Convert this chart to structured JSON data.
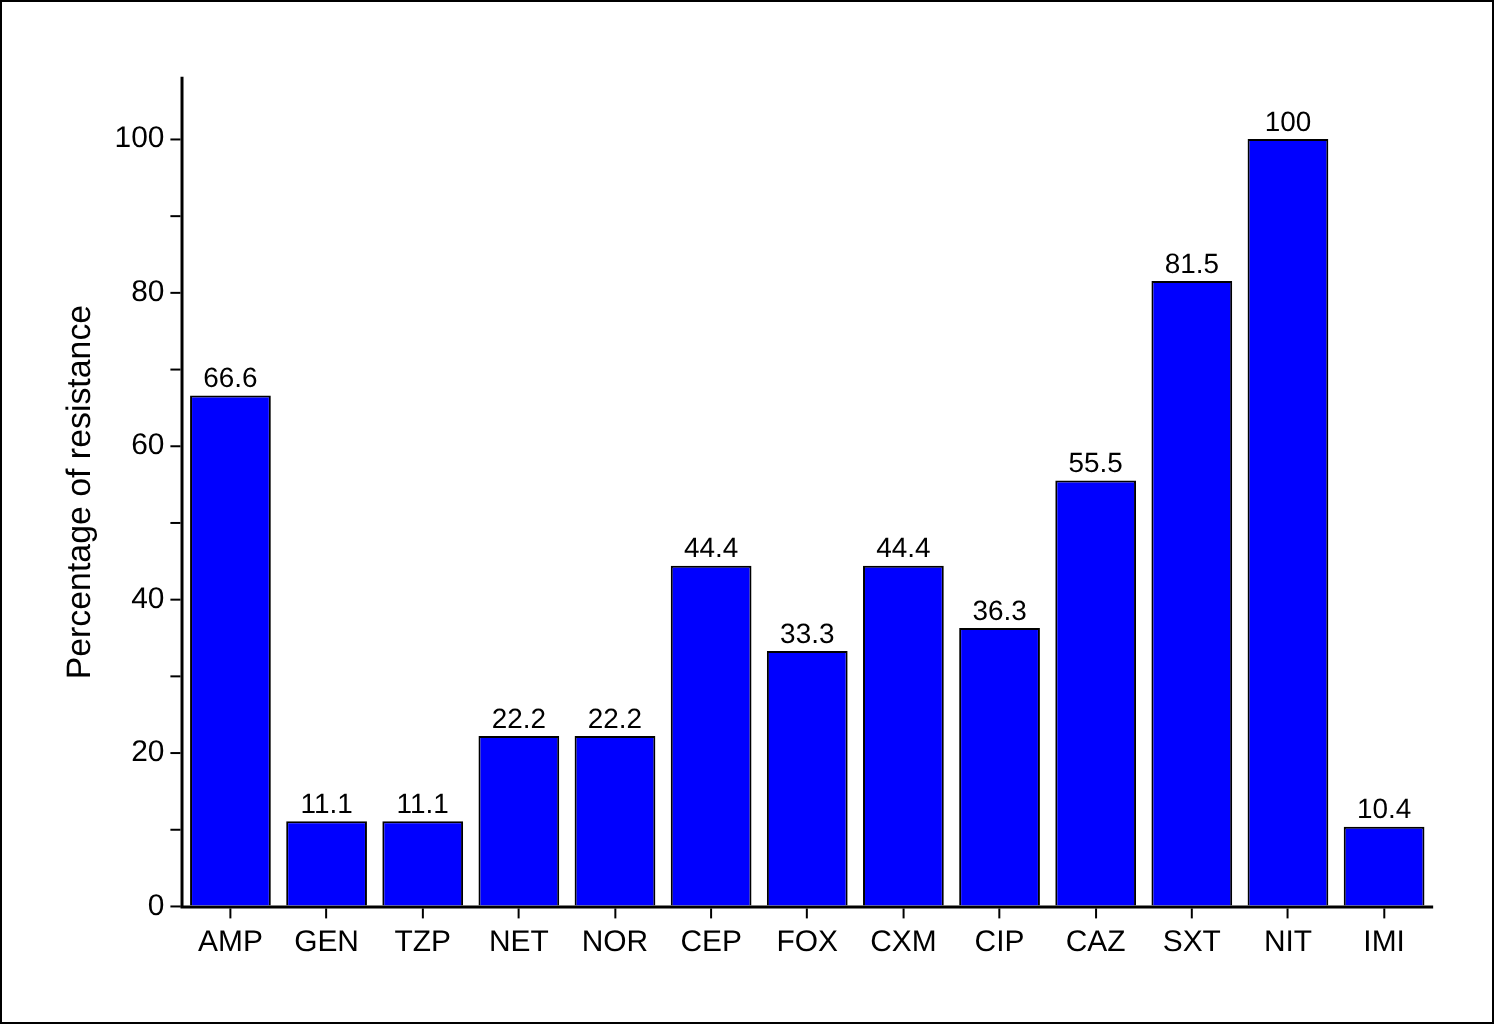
{
  "chart_data": {
    "type": "bar",
    "ylabel": "Percentage of resistance",
    "categories": [
      "AMP",
      "GEN",
      "TZP",
      "NET",
      "NOR",
      "CEP",
      "FOX",
      "CXM",
      "CIP",
      "CAZ",
      "SXT",
      "NIT",
      "IMI"
    ],
    "values": [
      66.6,
      11.1,
      11.1,
      22.2,
      22.2,
      44.4,
      33.3,
      44.4,
      36.3,
      55.5,
      81.5,
      100,
      10.4
    ],
    "color": "#0000ff",
    "data_labels": true,
    "ylim": [
      0,
      108
    ],
    "yticks": [
      0,
      {
        "value": 10,
        "label": null
      },
      20,
      {
        "value": 30,
        "label": null
      },
      40,
      {
        "value": 50,
        "label": null
      },
      60,
      {
        "value": 70,
        "label": null
      },
      80,
      {
        "value": 90,
        "label": null
      },
      100
    ],
    "grid": false,
    "legend": false
  }
}
